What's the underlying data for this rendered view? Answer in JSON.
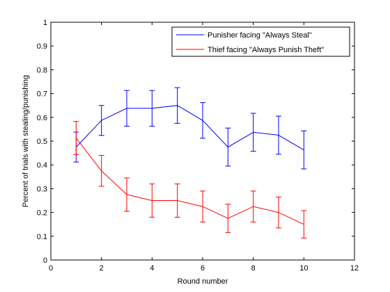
{
  "chart_data": {
    "type": "line",
    "title": "",
    "xlabel": "Round number",
    "ylabel": "Percent of trials with stealing/punishing",
    "xlim": [
      0,
      12
    ],
    "ylim": [
      0,
      1
    ],
    "xticks": [
      0,
      2,
      4,
      6,
      8,
      10,
      12
    ],
    "yticks": [
      0,
      0.1,
      0.2,
      0.3,
      0.4,
      0.5,
      0.6,
      0.7,
      0.8,
      0.9,
      1
    ],
    "grid": false,
    "legend_position": "top-right",
    "series": [
      {
        "name": "Punisher facing \"Always Steal\"",
        "color": "#0000ff",
        "x": [
          1,
          2,
          3,
          4,
          5,
          6,
          7,
          8,
          9,
          10
        ],
        "y": [
          0.475,
          0.587,
          0.638,
          0.638,
          0.65,
          0.587,
          0.475,
          0.537,
          0.525,
          0.463
        ],
        "err": [
          0.063,
          0.063,
          0.075,
          0.075,
          0.075,
          0.075,
          0.08,
          0.08,
          0.08,
          0.08
        ]
      },
      {
        "name": "Thief facing \"Always Punish Theft\"",
        "color": "#ff0000",
        "x": [
          1,
          2,
          3,
          4,
          5,
          6,
          7,
          8,
          9,
          10
        ],
        "y": [
          0.513,
          0.375,
          0.275,
          0.25,
          0.25,
          0.225,
          0.175,
          0.225,
          0.2,
          0.15
        ],
        "err": [
          0.07,
          0.065,
          0.07,
          0.07,
          0.07,
          0.065,
          0.06,
          0.065,
          0.065,
          0.058
        ]
      }
    ]
  }
}
